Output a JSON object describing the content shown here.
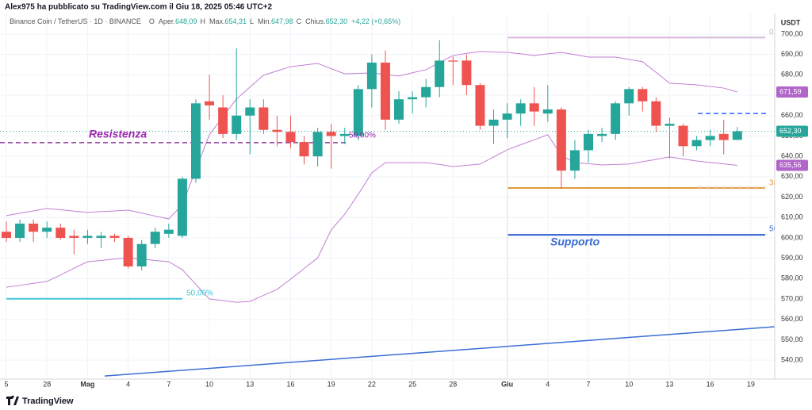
{
  "header": {
    "author_line": "Alex975 ha pubblicato su TradingView.com il Giu 18, 2025 05:46 UTC+2",
    "symbol": "Binance Coin / TetherUS · 1D · BINANCE",
    "ohlc": [
      {
        "key": "O",
        "label": "Aper.",
        "value": "648,09"
      },
      {
        "key": "H",
        "label": "Max.",
        "value": "654,31"
      },
      {
        "key": "L",
        "label": "Min.",
        "value": "647,98"
      },
      {
        "key": "C",
        "label": "Chius.",
        "value": "652,30"
      }
    ],
    "change": "+4,22 (+0,65%)"
  },
  "chart_data": {
    "type": "candlestick",
    "categories": [
      "5",
      null,
      null,
      "28",
      null,
      null,
      "Mag",
      null,
      null,
      "4",
      null,
      null,
      "7",
      null,
      null,
      "10",
      null,
      null,
      "13",
      null,
      null,
      "16",
      null,
      null,
      "19",
      null,
      null,
      "22",
      null,
      null,
      "25",
      null,
      null,
      "28",
      null,
      null,
      null,
      "Giu",
      null,
      null,
      "4",
      null,
      null,
      "7",
      null,
      null,
      "10",
      null,
      null,
      "13",
      null,
      null,
      "16",
      null,
      null,
      "19"
    ],
    "open": [
      603,
      600,
      607,
      603,
      605,
      601,
      600,
      600,
      601,
      600,
      586,
      597,
      602,
      601,
      629,
      667,
      664,
      651,
      660,
      664,
      653,
      652,
      647,
      640,
      652,
      650,
      650,
      673,
      686,
      658,
      668,
      669,
      674,
      687,
      687,
      675,
      655,
      658,
      661,
      666,
      661,
      663,
      633,
      643,
      650,
      651,
      666,
      673,
      667,
      655,
      655,
      645,
      648,
      651,
      648.09,
      null
    ],
    "high": [
      608,
      609,
      609,
      608,
      607,
      604,
      604,
      603,
      602,
      601,
      599,
      605,
      607,
      630,
      668,
      680,
      670,
      693,
      668,
      668,
      660,
      660,
      650,
      654,
      656,
      654,
      675,
      690,
      692,
      672,
      672,
      678,
      697,
      689,
      690,
      676,
      663,
      666,
      668,
      674,
      675,
      664,
      648,
      653,
      654,
      667,
      674,
      674,
      669,
      659,
      656,
      650,
      653,
      658,
      654.31,
      null
    ],
    "low": [
      598,
      598,
      598,
      600,
      599,
      592,
      597,
      595,
      598,
      585,
      584,
      595,
      600,
      600,
      627,
      658,
      649,
      648,
      641,
      651,
      645,
      644,
      636,
      635,
      634,
      646,
      648,
      664,
      653,
      656,
      661,
      664,
      669,
      675,
      670,
      653,
      646,
      649,
      655,
      655,
      657,
      624,
      629,
      637,
      647,
      648,
      660,
      662,
      652,
      639,
      640,
      643,
      645,
      641,
      647.98,
      null
    ],
    "close": [
      600,
      607,
      603,
      605,
      600,
      600,
      601,
      601,
      600,
      586,
      597,
      603,
      604,
      629,
      666,
      665,
      651,
      660,
      664,
      653,
      652,
      647,
      640,
      652,
      650,
      651,
      673,
      686,
      658,
      668,
      669,
      674,
      687,
      686.5,
      675,
      655,
      658,
      661,
      666,
      662,
      663,
      633,
      643,
      651,
      651,
      666,
      673,
      667,
      655,
      656,
      645,
      648,
      650,
      648,
      652.3,
      null
    ],
    "up_color": "#26a69a",
    "down_color": "#ef5350",
    "bands": [
      {
        "color": "#c27fd3",
        "values": [
          610.9,
          612.1,
          613.2,
          614.4,
          613.8,
          613.1,
          612.5,
          612.9,
          613.2,
          613.6,
          612.2,
          610.7,
          609.3,
          616.3,
          633.5,
          650.6,
          659.4,
          668.1,
          674.0,
          679.8,
          681.9,
          684.0,
          684.8,
          685.6,
          683.0,
          680.5,
          680.7,
          680.9,
          680.2,
          679.4,
          681.0,
          682.5,
          686.0,
          689.5,
          690.5,
          691.4,
          691.2,
          691.0,
          690.3,
          689.5,
          690.3,
          691.0,
          689.9,
          688.7,
          688.7,
          688.7,
          687.6,
          686.4,
          681.2,
          675.9,
          675.5,
          675.1,
          674.3,
          673.5,
          671.59,
          null
        ]
      },
      {
        "color": "#c27fd3",
        "values": [
          575.8,
          576.7,
          577.7,
          578.6,
          581.8,
          585.1,
          588.3,
          588.9,
          589.6,
          590.2,
          589.6,
          588.9,
          588.3,
          584.4,
          577.2,
          570.0,
          569.2,
          568.4,
          568.8,
          571.8,
          574.7,
          579.7,
          585.0,
          590.2,
          603.9,
          611.6,
          621.4,
          631.9,
          636.9,
          636.9,
          636.9,
          636.9,
          636.0,
          635.0,
          635.6,
          636.2,
          639.7,
          643.2,
          645.7,
          648.1,
          650.6,
          640.4,
          636.9,
          636.4,
          635.8,
          636.0,
          636.2,
          637.4,
          638.5,
          639.7,
          638.7,
          637.7,
          637.0,
          636.3,
          635.56,
          null
        ]
      }
    ],
    "ylim": [
      531.1,
      710.1
    ],
    "yticks": [
      {
        "value": 540,
        "label": "540,00"
      },
      {
        "value": 550,
        "label": "550,00"
      },
      {
        "value": 560,
        "label": "560,00"
      },
      {
        "value": 570,
        "label": "570,00"
      },
      {
        "value": 580,
        "label": "580,00"
      },
      {
        "value": 590,
        "label": "590,00"
      },
      {
        "value": 600,
        "label": "600,00"
      },
      {
        "value": 610,
        "label": "610,00"
      },
      {
        "value": 620,
        "label": "620,00"
      },
      {
        "value": 630,
        "label": "630,00"
      },
      {
        "value": 640,
        "label": "640,00"
      },
      {
        "value": 650,
        "label": "650,00"
      },
      {
        "value": 660,
        "label": "660,00"
      },
      {
        "value": 670,
        "label": "670,00"
      },
      {
        "value": 680,
        "label": "680,00"
      },
      {
        "value": 690,
        "label": "690,00"
      },
      {
        "value": 700,
        "label": "700,00"
      }
    ],
    "y_axis_label": "USDT",
    "grid": true,
    "price_labels": [
      {
        "value": 671.59,
        "label": "671,59",
        "color": "#b164c9"
      },
      {
        "value": 652.3,
        "label": "652,30",
        "color": "#26a69a"
      },
      {
        "value": 635.56,
        "label": "635,56",
        "color": "#b164c9"
      }
    ],
    "levels": [
      {
        "value": 646.7,
        "color": "#8e3b9e",
        "dash": true
      },
      {
        "value": 570.1,
        "color": "#3fc9d6",
        "dash": false
      },
      {
        "value": 601.5,
        "color": "#2f5fd0",
        "dash": false
      },
      {
        "value": 624.5,
        "color": "#e39a3c",
        "dash": false
      },
      {
        "value": 698.3,
        "color": "#d7b6e0",
        "dash": false
      },
      {
        "value": 661.0,
        "color": "#2962ff",
        "dash": true
      },
      {
        "value": 624.9,
        "color": "#e6cdb3",
        "dash": true
      },
      {
        "value": 698.6,
        "color": "#d8d8d8",
        "dash": true
      }
    ],
    "trendline": {
      "values": [
        532.2,
        556.4
      ],
      "color": "#3b6fd4"
    },
    "annotations": [
      {
        "text": "Resistenza",
        "color": "#9c27b0"
      },
      {
        "text": "Supporto",
        "color": "#3a6bd1"
      },
      {
        "text": "50,00%",
        "color": "#3fc9d6"
      },
      {
        "text": "50,00%",
        "color": "#9c27b0"
      },
      {
        "text": "50",
        "color": "#3a6bd1"
      },
      {
        "text": "38",
        "color": "#e39a3c"
      },
      {
        "text": "0",
        "color": "#bbbbbb"
      }
    ]
  },
  "footer": {
    "brand": "TradingView"
  }
}
